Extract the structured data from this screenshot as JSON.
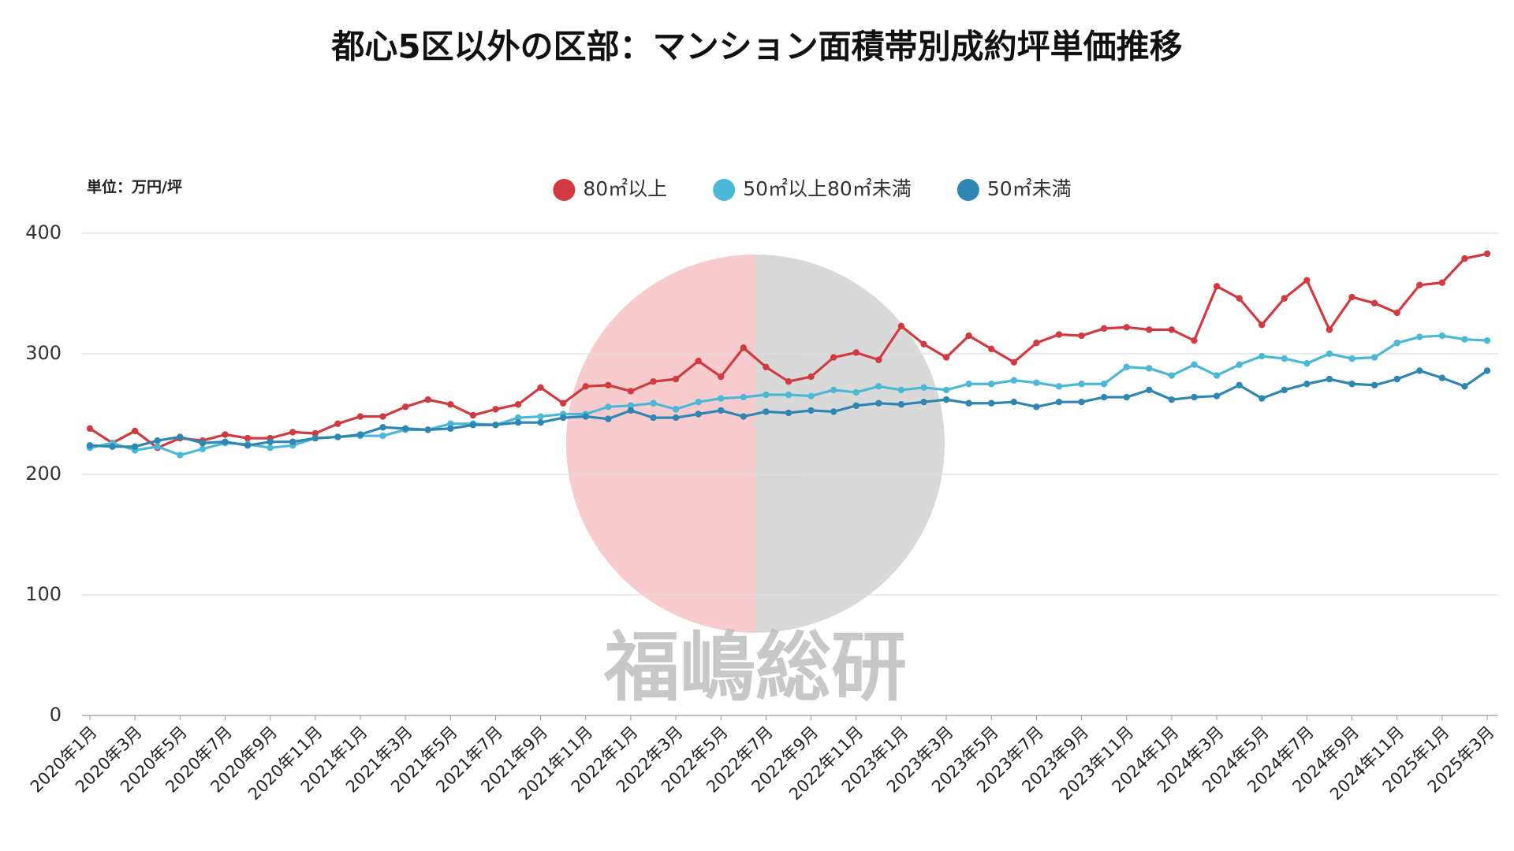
{
  "chart_data": {
    "type": "line",
    "title": "都心5区以外の区部：マンション面積帯別成約坪単価推移",
    "unit_label": "単位：万円/坪",
    "watermark": "福嶋総研",
    "categories": [
      "2020年1月",
      null,
      "2020年3月",
      null,
      "2020年5月",
      null,
      "2020年7月",
      null,
      "2020年9月",
      null,
      "2020年11月",
      null,
      "2021年1月",
      null,
      "2021年3月",
      null,
      "2021年5月",
      null,
      "2021年7月",
      null,
      "2021年9月",
      null,
      "2021年11月",
      null,
      "2022年1月",
      null,
      "2022年3月",
      null,
      "2022年5月",
      null,
      "2022年7月",
      null,
      "2022年9月",
      null,
      "2022年11月",
      null,
      "2023年1月",
      null,
      "2023年3月",
      null,
      "2023年5月",
      null,
      "2023年7月",
      null,
      "2023年9月",
      null,
      "2023年11月",
      null,
      "2024年1月",
      null,
      "2024年3月",
      null,
      "2024年5月",
      null,
      "2024年7月",
      null,
      "2024年9月",
      null,
      "2024年11月",
      null,
      "2025年1月",
      null,
      "2025年3月"
    ],
    "series": [
      {
        "name": "80㎡以上",
        "color": "#d13b40",
        "values": [
          238,
          226,
          236,
          222,
          230,
          228,
          233,
          230,
          230,
          235,
          234,
          242,
          248,
          248,
          256,
          262,
          258,
          249,
          254,
          258,
          272,
          259,
          273,
          274,
          269,
          277,
          279,
          294,
          281,
          305,
          289,
          277,
          281,
          297,
          301,
          295,
          323,
          308,
          297,
          315,
          304,
          293,
          309,
          316,
          315,
          321,
          322,
          320,
          320,
          311,
          356,
          346,
          324,
          346,
          361,
          320,
          347,
          342,
          334,
          357,
          359,
          379,
          383
        ]
      },
      {
        "name": "50㎡以上80㎡未満",
        "color": "#4bb8d8",
        "values": [
          222,
          226,
          220,
          223,
          216,
          221,
          226,
          225,
          222,
          224,
          230,
          231,
          232,
          232,
          237,
          237,
          242,
          242,
          241,
          247,
          248,
          250,
          250,
          256,
          257,
          259,
          254,
          260,
          263,
          264,
          266,
          266,
          265,
          270,
          268,
          273,
          270,
          272,
          270,
          275,
          275,
          278,
          276,
          273,
          275,
          275,
          289,
          288,
          282,
          291,
          282,
          291,
          298,
          296,
          292,
          300,
          296,
          297,
          309,
          314,
          315,
          312,
          311
        ]
      },
      {
        "name": "50㎡未満",
        "color": "#2e86b3",
        "values": [
          224,
          223,
          223,
          228,
          231,
          226,
          227,
          224,
          227,
          227,
          230,
          231,
          233,
          239,
          238,
          237,
          238,
          241,
          241,
          243,
          243,
          247,
          248,
          246,
          253,
          247,
          247,
          250,
          253,
          248,
          252,
          251,
          253,
          252,
          257,
          259,
          258,
          260,
          262,
          259,
          259,
          260,
          256,
          260,
          260,
          264,
          264,
          270,
          262,
          264,
          265,
          274,
          263,
          270,
          275,
          279,
          275,
          274,
          279,
          286,
          280,
          273,
          286
        ]
      }
    ],
    "ylim": [
      0,
      400
    ],
    "yticks": [
      0,
      100,
      200,
      300,
      400
    ],
    "grid": true,
    "legend": "top"
  }
}
